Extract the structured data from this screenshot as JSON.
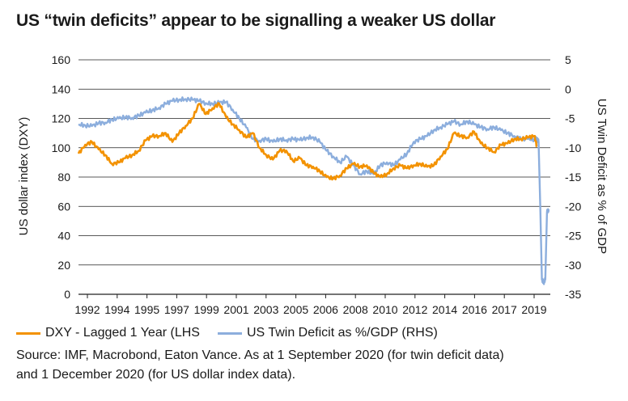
{
  "colors": {
    "dxy": "#f39200",
    "twin": "#8caedd",
    "grid": "#222222"
  },
  "chart_data": {
    "type": "line",
    "title": "US “twin deficits” appear to be signalling a weaker US dollar",
    "ylabel_left": "US dollar index (DXY)",
    "ylabel_right": "US Twin Deficit as % of GDP",
    "x_ticks": [
      "1992",
      "1994",
      "1995",
      "1997",
      "1999",
      "2001",
      "2003",
      "2005",
      "2006",
      "2008",
      "2010",
      "2012",
      "2014",
      "2016",
      "2017",
      "2019"
    ],
    "left_ticks": [
      "0",
      "20",
      "40",
      "60",
      "80",
      "100",
      "120",
      "140",
      "160"
    ],
    "right_ticks": [
      "-35",
      "-30",
      "-25",
      "-20",
      "-15",
      "-10",
      "-5",
      "0",
      "5"
    ],
    "ylim_left": [
      0,
      160
    ],
    "ylim_right": [
      -35,
      5
    ],
    "xlim": [
      1992,
      2020.15
    ],
    "grid": "horizontal",
    "legend_position": "bottom",
    "series": [
      {
        "name": "DXY - Lagged 1 Year (LHS",
        "axis": "left",
        "color": "#f39200",
        "x": [
          1992.0,
          1992.4,
          1992.8,
          1993.2,
          1993.6,
          1994.0,
          1994.4,
          1994.8,
          1995.2,
          1995.6,
          1996.0,
          1996.4,
          1996.8,
          1997.2,
          1997.6,
          1998.0,
          1998.4,
          1998.8,
          1999.2,
          1999.6,
          2000.0,
          2000.4,
          2000.8,
          2001.2,
          2001.6,
          2002.0,
          2002.4,
          2002.8,
          2003.2,
          2003.6,
          2004.0,
          2004.4,
          2004.8,
          2005.2,
          2005.6,
          2006.0,
          2006.4,
          2006.8,
          2007.2,
          2007.6,
          2008.0,
          2008.4,
          2008.8,
          2009.2,
          2009.6,
          2010.0,
          2010.4,
          2010.8,
          2011.2,
          2011.6,
          2012.0,
          2012.4,
          2012.8,
          2013.2,
          2013.6,
          2014.0,
          2014.4,
          2014.8,
          2015.2,
          2015.6,
          2016.0,
          2016.4,
          2016.8,
          2017.2,
          2017.6,
          2018.0,
          2018.4,
          2018.8,
          2019.2,
          2019.35
        ],
        "values": [
          96,
          102,
          104,
          99,
          95,
          89,
          90,
          93,
          95,
          98,
          105,
          108,
          108,
          110,
          104,
          110,
          115,
          120,
          130,
          123,
          127,
          130,
          121,
          116,
          112,
          107,
          110,
          100,
          95,
          92,
          98,
          98,
          91,
          93,
          88,
          87,
          84,
          80,
          79,
          81,
          86,
          89,
          87,
          88,
          83,
          80,
          82,
          86,
          88,
          86,
          88,
          89,
          87,
          88,
          94,
          99,
          110,
          108,
          107,
          111,
          103,
          100,
          97,
          102,
          103,
          106,
          106,
          107,
          108,
          101
        ],
        "jitter": 1.2
      },
      {
        "name": "US Twin Deficit as %/GDP (RHS)",
        "axis": "right",
        "color": "#8caedd",
        "x": [
          1992.0,
          1992.4,
          1992.8,
          1993.2,
          1993.6,
          1994.0,
          1994.4,
          1994.8,
          1995.2,
          1995.6,
          1996.0,
          1996.4,
          1996.8,
          1997.2,
          1997.6,
          1998.0,
          1998.4,
          1998.8,
          1999.2,
          1999.6,
          2000.0,
          2000.4,
          2000.8,
          2001.2,
          2001.6,
          2002.0,
          2002.4,
          2002.8,
          2003.2,
          2003.6,
          2004.0,
          2004.4,
          2004.8,
          2005.2,
          2005.6,
          2006.0,
          2006.4,
          2006.8,
          2007.2,
          2007.6,
          2008.0,
          2008.4,
          2008.8,
          2009.2,
          2009.6,
          2010.0,
          2010.4,
          2010.8,
          2011.2,
          2011.6,
          2012.0,
          2012.4,
          2012.8,
          2013.2,
          2013.6,
          2014.0,
          2014.4,
          2014.8,
          2015.2,
          2015.6,
          2016.0,
          2016.4,
          2016.8,
          2017.2,
          2017.6,
          2018.0,
          2018.4,
          2018.8,
          2019.2,
          2019.35,
          2019.45,
          2019.55,
          2019.65,
          2019.75,
          2019.85,
          2019.95,
          2020.05
        ],
        "values": [
          -6.0,
          -6.2,
          -6.3,
          -5.8,
          -5.7,
          -5.2,
          -5.0,
          -4.8,
          -4.9,
          -4.5,
          -4.0,
          -3.6,
          -3.2,
          -2.5,
          -2.0,
          -1.8,
          -1.7,
          -1.8,
          -2.0,
          -2.4,
          -2.5,
          -2.3,
          -2.2,
          -3.5,
          -5.0,
          -6.5,
          -8.5,
          -8.8,
          -8.5,
          -9.0,
          -8.5,
          -8.7,
          -8.5,
          -8.7,
          -8.3,
          -8.2,
          -9.0,
          -10.5,
          -11.5,
          -12.5,
          -11.5,
          -13.0,
          -14.5,
          -14.0,
          -14.5,
          -13.0,
          -12.5,
          -13.0,
          -12.0,
          -11.0,
          -9.0,
          -8.5,
          -8.0,
          -7.0,
          -6.5,
          -6.0,
          -5.5,
          -6.0,
          -5.5,
          -6.0,
          -6.5,
          -6.8,
          -6.5,
          -7.0,
          -7.5,
          -8.0,
          -8.5,
          -8.5,
          -8.6,
          -8.3,
          -9.0,
          -20.0,
          -32.5,
          -33.0,
          -32.5,
          -21.0,
          -20.5
        ],
        "jitter": 0.35
      }
    ]
  },
  "footer": {
    "source_line1": "Source: IMF, Macrobond, Eaton Vance. As at 1 September 2020 (for twin deficit data)",
    "source_line2": "and 1 December 2020 (for US dollar index data)."
  }
}
